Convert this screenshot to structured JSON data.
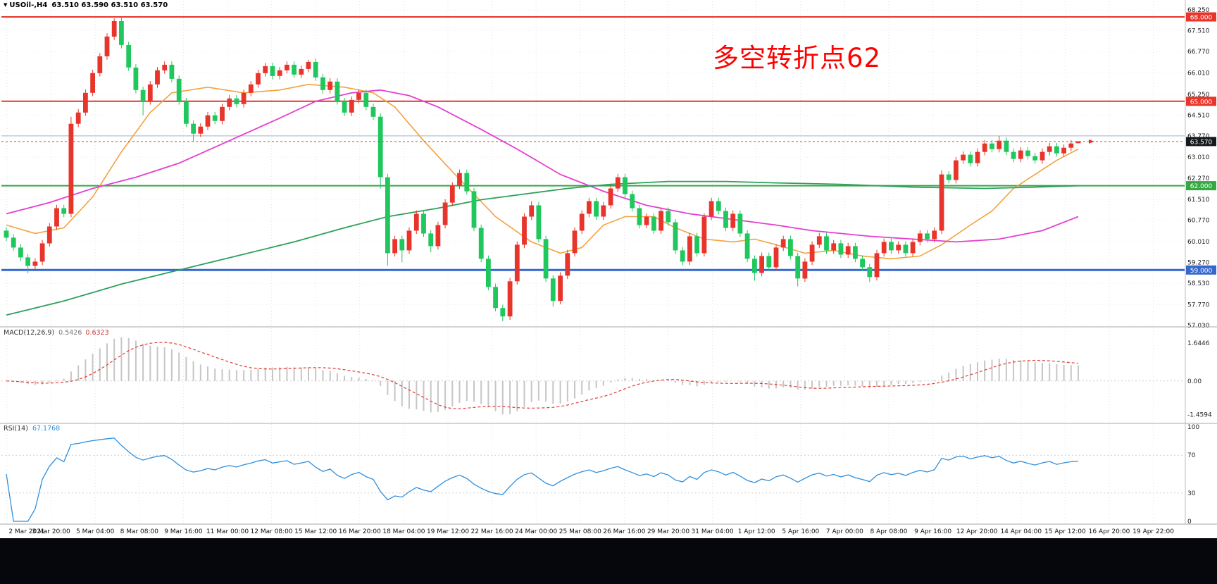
{
  "window": {
    "symbol_title": "USOil-,H4",
    "ohlc": "63.510 63.590 63.510 63.570",
    "annotation": "多空转折点62"
  },
  "main_chart": {
    "tick_prices": [
      68.25,
      67.51,
      66.77,
      66.01,
      65.25,
      64.51,
      63.77,
      63.01,
      62.27,
      61.51,
      60.77,
      60.01,
      59.27,
      58.53,
      57.77,
      57.03
    ],
    "tick_labels": [
      "68.250",
      "67.510",
      "66.770",
      "66.010",
      "65.250",
      "64.510",
      "63.770",
      "63.010",
      "62.270",
      "61.510",
      "60.770",
      "60.010",
      "59.270",
      "58.530",
      "57.770",
      "57.030"
    ],
    "hlines": [
      {
        "p": 68.0,
        "label": "68.000",
        "color": "#e8352b",
        "width": 2
      },
      {
        "p": 65.0,
        "label": "65.000",
        "color": "#e8352b",
        "width": 2
      },
      {
        "p": 63.77,
        "label": "",
        "color": "#9db6c6",
        "width": 1
      },
      {
        "p": 62.0,
        "label": "62.000",
        "color": "#35a843",
        "width": 2
      },
      {
        "p": 59.0,
        "label": "59.000",
        "color": "#3568cf",
        "width": 3
      }
    ],
    "current_price": {
      "p": 63.57,
      "label": "63.570",
      "badge": "#15181d"
    }
  },
  "indicators": {
    "macd": {
      "label": "MACD(12,26,9)",
      "value_main": "0.5426",
      "value_signal": "0.6323",
      "axis": [
        "1.6446",
        "0.00",
        "-1.4594"
      ]
    },
    "rsi": {
      "label": "RSI(14)",
      "value": "67.1768",
      "axis": [
        "100",
        "70",
        "30",
        "0"
      ],
      "levels": [
        70,
        30
      ]
    }
  },
  "time_axis": [
    "2 Mar 2021",
    "3 Mar 20:00",
    "5 Mar 04:00",
    "8 Mar 08:00",
    "9 Mar 16:00",
    "11 Mar 00:00",
    "12 Mar 08:00",
    "15 Mar 12:00",
    "16 Mar 20:00",
    "18 Mar 04:00",
    "19 Mar 12:00",
    "22 Mar 16:00",
    "24 Mar 00:00",
    "25 Mar 08:00",
    "26 Mar 16:00",
    "29 Mar 20:00",
    "31 Mar 04:00",
    "1 Apr 12:00",
    "5 Apr 16:00",
    "7 Apr 00:00",
    "8 Apr 08:00",
    "9 Apr 16:00",
    "12 Apr 20:00",
    "14 Apr 04:00",
    "15 Apr 12:00",
    "16 Apr 20:00",
    "19 Apr 22:00"
  ],
  "chart_data": {
    "type": "candlestick",
    "symbol": "USOil",
    "timeframe": "H4",
    "title": "USOil-,H4",
    "up_color": "#e8352b",
    "down_color": "#1fc75d",
    "price_range": [
      57.03,
      68.25
    ],
    "candles": [
      [
        60.4,
        60.52,
        60.03,
        60.15
      ],
      [
        60.15,
        60.27,
        59.68,
        59.8
      ],
      [
        59.8,
        59.92,
        59.33,
        59.45
      ],
      [
        59.45,
        59.57,
        58.88,
        59.15
      ],
      [
        59.15,
        59.42,
        59.03,
        59.3
      ],
      [
        59.3,
        60.07,
        59.18,
        59.95
      ],
      [
        59.95,
        60.67,
        59.83,
        60.55
      ],
      [
        60.55,
        61.32,
        60.43,
        61.2
      ],
      [
        61.2,
        61.32,
        60.88,
        61.0
      ],
      [
        61.0,
        64.45,
        60.88,
        64.2
      ],
      [
        64.2,
        64.72,
        64.08,
        64.6
      ],
      [
        64.6,
        65.42,
        64.48,
        65.3
      ],
      [
        65.3,
        66.12,
        65.18,
        66.0
      ],
      [
        66.0,
        66.72,
        65.88,
        66.6
      ],
      [
        66.6,
        67.42,
        66.48,
        67.3
      ],
      [
        67.3,
        67.95,
        67.18,
        67.85
      ],
      [
        67.85,
        67.97,
        66.88,
        67.0
      ],
      [
        67.0,
        67.12,
        66.08,
        66.2
      ],
      [
        66.2,
        66.32,
        65.28,
        65.4
      ],
      [
        65.4,
        65.52,
        64.5,
        65.0
      ],
      [
        65.0,
        65.72,
        64.88,
        65.6
      ],
      [
        65.6,
        66.22,
        65.48,
        66.1
      ],
      [
        66.1,
        66.42,
        65.98,
        66.3
      ],
      [
        66.3,
        66.42,
        65.68,
        65.8
      ],
      [
        65.8,
        65.92,
        64.88,
        65.0
      ],
      [
        65.0,
        65.12,
        64.08,
        64.2
      ],
      [
        64.2,
        64.32,
        63.58,
        63.85
      ],
      [
        63.85,
        64.22,
        63.73,
        64.1
      ],
      [
        64.1,
        64.62,
        63.98,
        64.5
      ],
      [
        64.5,
        64.62,
        64.18,
        64.3
      ],
      [
        64.3,
        64.92,
        64.18,
        64.8
      ],
      [
        64.8,
        65.22,
        64.68,
        65.1
      ],
      [
        65.1,
        65.22,
        64.78,
        64.9
      ],
      [
        64.9,
        65.42,
        64.78,
        65.3
      ],
      [
        65.3,
        65.72,
        65.18,
        65.6
      ],
      [
        65.6,
        66.12,
        65.48,
        66.0
      ],
      [
        66.0,
        66.37,
        65.88,
        66.25
      ],
      [
        66.25,
        66.37,
        65.78,
        65.9
      ],
      [
        65.9,
        66.22,
        65.78,
        66.1
      ],
      [
        66.1,
        66.42,
        65.98,
        66.3
      ],
      [
        66.3,
        66.42,
        65.83,
        65.95
      ],
      [
        65.95,
        66.27,
        65.83,
        66.15
      ],
      [
        66.15,
        66.48,
        66.03,
        66.4
      ],
      [
        66.4,
        66.52,
        65.73,
        65.85
      ],
      [
        65.85,
        65.97,
        65.28,
        65.4
      ],
      [
        65.4,
        65.82,
        65.28,
        65.7
      ],
      [
        65.7,
        65.82,
        64.88,
        65.0
      ],
      [
        65.0,
        65.12,
        64.48,
        64.6
      ],
      [
        64.6,
        65.17,
        64.48,
        65.05
      ],
      [
        65.05,
        65.42,
        64.93,
        65.3
      ],
      [
        65.3,
        65.42,
        64.68,
        64.8
      ],
      [
        64.8,
        64.92,
        64.33,
        64.45
      ],
      [
        64.45,
        64.57,
        61.9,
        62.3
      ],
      [
        62.3,
        62.42,
        59.15,
        59.6
      ],
      [
        59.6,
        60.22,
        59.48,
        60.1
      ],
      [
        60.1,
        60.22,
        59.28,
        59.7
      ],
      [
        59.7,
        60.52,
        59.58,
        60.4
      ],
      [
        60.4,
        61.12,
        60.28,
        61.0
      ],
      [
        61.0,
        61.12,
        60.18,
        60.3
      ],
      [
        60.3,
        60.42,
        59.63,
        59.85
      ],
      [
        59.85,
        60.72,
        59.73,
        60.6
      ],
      [
        60.6,
        61.52,
        60.48,
        61.4
      ],
      [
        61.4,
        62.12,
        61.28,
        62.0
      ],
      [
        62.0,
        62.57,
        61.88,
        62.45
      ],
      [
        62.45,
        62.57,
        61.68,
        61.8
      ],
      [
        61.8,
        61.92,
        60.38,
        60.5
      ],
      [
        60.5,
        60.62,
        59.28,
        59.4
      ],
      [
        59.4,
        59.52,
        58.28,
        58.4
      ],
      [
        58.4,
        58.52,
        57.53,
        57.65
      ],
      [
        57.65,
        57.77,
        57.18,
        57.35
      ],
      [
        57.35,
        58.72,
        57.23,
        58.6
      ],
      [
        58.6,
        60.02,
        58.48,
        59.9
      ],
      [
        59.9,
        61.02,
        59.78,
        60.9
      ],
      [
        60.9,
        61.45,
        60.78,
        61.3
      ],
      [
        61.3,
        61.42,
        59.98,
        60.1
      ],
      [
        60.1,
        60.22,
        58.58,
        58.7
      ],
      [
        58.7,
        58.82,
        57.7,
        57.9
      ],
      [
        57.9,
        58.92,
        57.78,
        58.8
      ],
      [
        58.8,
        59.72,
        58.68,
        59.6
      ],
      [
        59.6,
        60.52,
        59.48,
        60.4
      ],
      [
        60.4,
        61.12,
        60.28,
        61.0
      ],
      [
        61.0,
        61.57,
        60.88,
        61.45
      ],
      [
        61.45,
        61.57,
        60.78,
        60.9
      ],
      [
        60.9,
        61.42,
        60.78,
        61.3
      ],
      [
        61.3,
        62.02,
        61.18,
        61.9
      ],
      [
        61.9,
        62.42,
        61.78,
        62.3
      ],
      [
        62.3,
        62.42,
        61.58,
        61.7
      ],
      [
        61.7,
        61.82,
        61.08,
        61.2
      ],
      [
        61.2,
        61.32,
        60.48,
        60.6
      ],
      [
        60.6,
        61.02,
        60.48,
        60.9
      ],
      [
        60.9,
        61.02,
        60.28,
        60.4
      ],
      [
        60.4,
        61.22,
        60.28,
        61.1
      ],
      [
        61.1,
        61.22,
        60.58,
        60.7
      ],
      [
        60.7,
        60.82,
        59.58,
        59.7
      ],
      [
        59.7,
        59.82,
        59.18,
        59.3
      ],
      [
        59.3,
        60.32,
        59.18,
        60.2
      ],
      [
        60.2,
        60.32,
        59.48,
        59.6
      ],
      [
        59.6,
        61.02,
        59.48,
        60.9
      ],
      [
        60.9,
        61.57,
        60.78,
        61.45
      ],
      [
        61.45,
        61.57,
        60.98,
        61.1
      ],
      [
        61.1,
        61.22,
        60.38,
        60.5
      ],
      [
        60.5,
        61.12,
        60.38,
        61.0
      ],
      [
        61.0,
        61.12,
        60.18,
        60.3
      ],
      [
        60.3,
        60.42,
        59.28,
        59.4
      ],
      [
        59.4,
        59.52,
        58.62,
        58.9
      ],
      [
        58.9,
        59.62,
        58.78,
        59.5
      ],
      [
        59.5,
        59.62,
        58.98,
        59.1
      ],
      [
        59.1,
        59.92,
        58.98,
        59.8
      ],
      [
        59.8,
        60.22,
        59.68,
        60.1
      ],
      [
        60.1,
        60.22,
        59.38,
        59.5
      ],
      [
        59.5,
        59.62,
        58.42,
        58.7
      ],
      [
        58.7,
        59.42,
        58.58,
        59.3
      ],
      [
        59.3,
        60.02,
        59.18,
        59.9
      ],
      [
        59.9,
        60.32,
        59.78,
        60.2
      ],
      [
        60.2,
        60.32,
        59.58,
        59.7
      ],
      [
        59.7,
        60.07,
        59.58,
        59.95
      ],
      [
        59.95,
        60.07,
        59.43,
        59.55
      ],
      [
        59.55,
        59.97,
        59.43,
        59.85
      ],
      [
        59.85,
        59.97,
        59.28,
        59.4
      ],
      [
        59.4,
        59.52,
        58.98,
        59.1
      ],
      [
        59.1,
        59.22,
        58.58,
        58.75
      ],
      [
        58.75,
        59.72,
        58.63,
        59.6
      ],
      [
        59.6,
        60.12,
        59.48,
        60.0
      ],
      [
        60.0,
        60.12,
        59.58,
        59.7
      ],
      [
        59.7,
        60.02,
        59.58,
        59.9
      ],
      [
        59.9,
        60.02,
        59.48,
        59.6
      ],
      [
        59.6,
        60.12,
        59.48,
        60.0
      ],
      [
        60.0,
        60.42,
        59.88,
        60.3
      ],
      [
        60.3,
        60.42,
        59.98,
        60.1
      ],
      [
        60.1,
        60.52,
        59.98,
        60.4
      ],
      [
        60.4,
        62.55,
        60.28,
        62.4
      ],
      [
        62.4,
        62.52,
        62.08,
        62.2
      ],
      [
        62.2,
        63.02,
        62.08,
        62.9
      ],
      [
        62.9,
        63.22,
        62.78,
        63.1
      ],
      [
        63.1,
        63.22,
        62.68,
        62.8
      ],
      [
        62.8,
        63.32,
        62.68,
        63.2
      ],
      [
        63.2,
        63.62,
        63.08,
        63.5
      ],
      [
        63.5,
        63.62,
        63.18,
        63.3
      ],
      [
        63.3,
        63.77,
        63.18,
        63.6
      ],
      [
        63.6,
        63.72,
        63.08,
        63.2
      ],
      [
        63.2,
        63.32,
        62.83,
        62.95
      ],
      [
        62.95,
        63.37,
        62.83,
        63.25
      ],
      [
        63.25,
        63.37,
        62.93,
        63.05
      ],
      [
        63.05,
        63.17,
        62.78,
        62.9
      ],
      [
        62.9,
        63.32,
        62.78,
        63.2
      ],
      [
        63.2,
        63.52,
        63.08,
        63.4
      ],
      [
        63.4,
        63.52,
        63.03,
        63.15
      ],
      [
        63.15,
        63.47,
        63.03,
        63.35
      ],
      [
        63.35,
        63.62,
        63.23,
        63.5
      ],
      [
        63.51,
        63.59,
        63.51,
        63.57
      ]
    ],
    "ma_lines": [
      {
        "name": "ma-fast-orange",
        "color": "#f2a33c",
        "points": [
          [
            0,
            60.6
          ],
          [
            4,
            60.3
          ],
          [
            8,
            60.5
          ],
          [
            12,
            61.6
          ],
          [
            16,
            63.2
          ],
          [
            20,
            64.6
          ],
          [
            23,
            65.3
          ],
          [
            28,
            65.5
          ],
          [
            33,
            65.3
          ],
          [
            38,
            65.4
          ],
          [
            42,
            65.6
          ],
          [
            47,
            65.5
          ],
          [
            51,
            65.3
          ],
          [
            54,
            64.8
          ],
          [
            58,
            63.6
          ],
          [
            62,
            62.5
          ],
          [
            68,
            60.9
          ],
          [
            73,
            60.0
          ],
          [
            77,
            59.6
          ],
          [
            80,
            59.8
          ],
          [
            83,
            60.6
          ],
          [
            86,
            60.9
          ],
          [
            90,
            60.9
          ],
          [
            93,
            60.5
          ],
          [
            97,
            60.1
          ],
          [
            101,
            60.0
          ],
          [
            104,
            60.1
          ],
          [
            107,
            59.9
          ],
          [
            111,
            59.6
          ],
          [
            115,
            59.7
          ],
          [
            119,
            59.5
          ],
          [
            123,
            59.4
          ],
          [
            127,
            59.5
          ],
          [
            130,
            59.9
          ],
          [
            134,
            60.6
          ],
          [
            137,
            61.1
          ],
          [
            140,
            61.9
          ],
          [
            143,
            62.4
          ],
          [
            146,
            62.9
          ],
          [
            149,
            63.3
          ]
        ]
      },
      {
        "name": "ma-mid-magenta",
        "color": "#e33fd0",
        "points": [
          [
            0,
            61.0
          ],
          [
            6,
            61.4
          ],
          [
            12,
            61.9
          ],
          [
            18,
            62.3
          ],
          [
            24,
            62.8
          ],
          [
            31,
            63.6
          ],
          [
            38,
            64.4
          ],
          [
            43,
            65.0
          ],
          [
            48,
            65.3
          ],
          [
            52,
            65.4
          ],
          [
            56,
            65.2
          ],
          [
            60,
            64.8
          ],
          [
            66,
            64.0
          ],
          [
            71,
            63.3
          ],
          [
            77,
            62.4
          ],
          [
            83,
            61.8
          ],
          [
            89,
            61.3
          ],
          [
            95,
            61.0
          ],
          [
            101,
            60.8
          ],
          [
            107,
            60.6
          ],
          [
            112,
            60.4
          ],
          [
            120,
            60.2
          ],
          [
            126,
            60.1
          ],
          [
            132,
            60.0
          ],
          [
            138,
            60.1
          ],
          [
            144,
            60.4
          ],
          [
            149,
            60.9
          ]
        ]
      },
      {
        "name": "ma-slow-green",
        "color": "#2da05a",
        "points": [
          [
            0,
            57.4
          ],
          [
            8,
            57.9
          ],
          [
            16,
            58.5
          ],
          [
            24,
            59.0
          ],
          [
            32,
            59.5
          ],
          [
            40,
            60.0
          ],
          [
            47,
            60.5
          ],
          [
            53,
            60.9
          ],
          [
            60,
            61.2
          ],
          [
            66,
            61.5
          ],
          [
            72,
            61.7
          ],
          [
            78,
            61.9
          ],
          [
            84,
            62.05
          ],
          [
            92,
            62.15
          ],
          [
            100,
            62.15
          ],
          [
            107,
            62.1
          ],
          [
            116,
            62.05
          ],
          [
            126,
            61.95
          ],
          [
            136,
            61.9
          ],
          [
            143,
            61.95
          ],
          [
            149,
            62.0
          ]
        ]
      }
    ],
    "macd": {
      "fast": 12,
      "slow": 26,
      "signal": 9,
      "hist_color": "#c6c6c6",
      "signal_color": "#e03a30"
    },
    "rsi": {
      "period": 14,
      "color": "#2f8fdd"
    }
  }
}
